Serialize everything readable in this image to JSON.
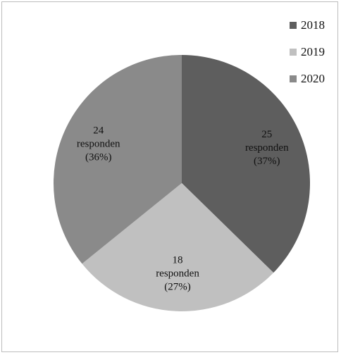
{
  "chart_data": {
    "type": "pie",
    "categories": [
      "2018",
      "2019",
      "2020"
    ],
    "values": [
      25,
      18,
      24
    ],
    "percent_labels": [
      "(37%)",
      "(27%)",
      "(36%)"
    ],
    "data_labels": [
      [
        "25",
        "responden",
        "(37%)"
      ],
      [
        "18",
        "responden",
        "(27%)"
      ],
      [
        "24",
        "responden",
        "(36%)"
      ]
    ],
    "colors": [
      "#5e5e5e",
      "#c0c0c0",
      "#8a8a8a"
    ],
    "start_angle_deg": 0,
    "direction": "clockwise",
    "legend": {
      "position": "top-right",
      "entries": [
        "2018",
        "2019",
        "2020"
      ]
    }
  }
}
